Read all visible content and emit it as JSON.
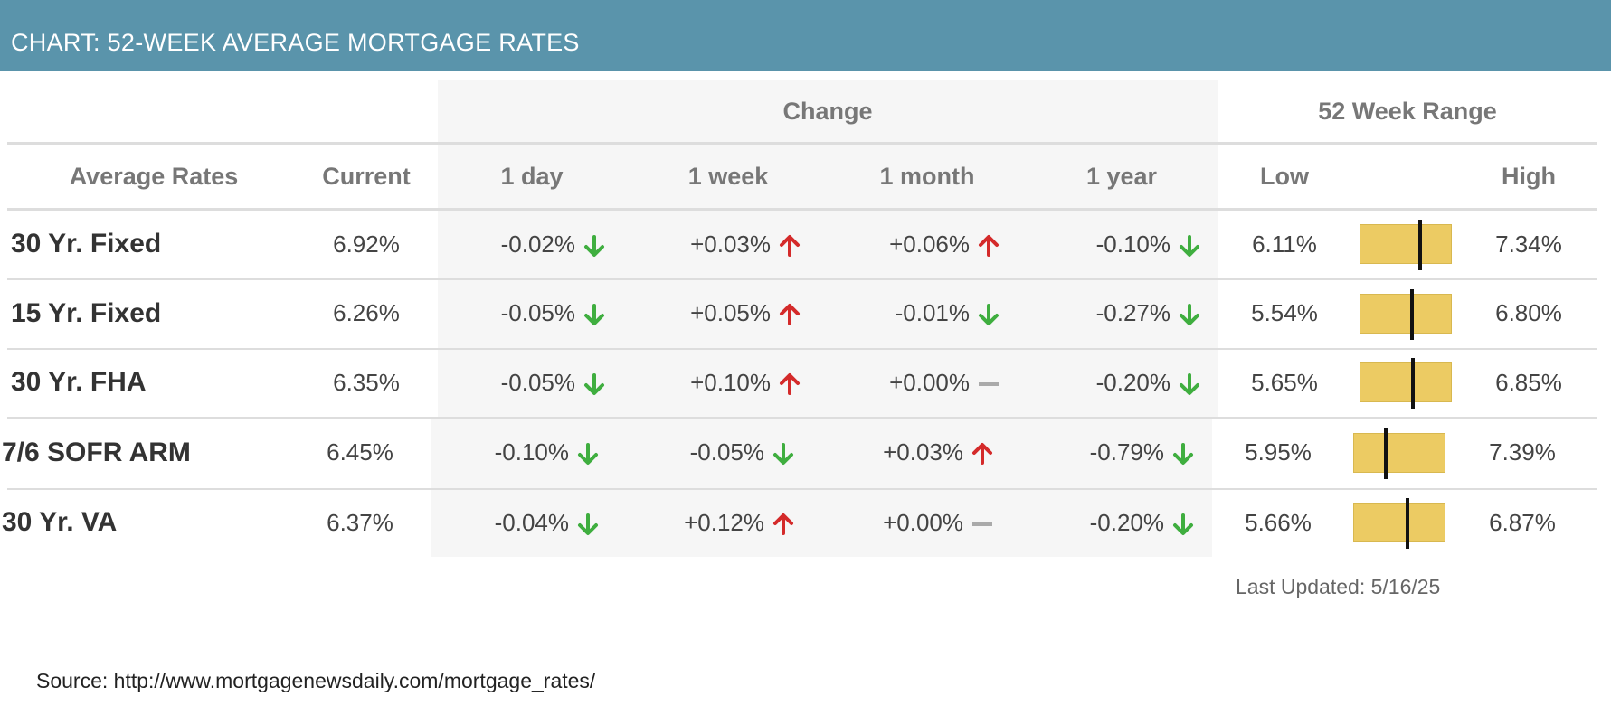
{
  "header": {
    "title": "CHART: 52-WEEK AVERAGE MORTGAGE RATES"
  },
  "chart_data": {
    "type": "table",
    "group_headers": {
      "change": "Change",
      "range": "52 Week Range"
    },
    "columns": {
      "average_rates": "Average Rates",
      "current": "Current",
      "d1": "1 day",
      "w1": "1 week",
      "m1": "1 month",
      "y1": "1 year",
      "low": "Low",
      "high": "High"
    },
    "rows": [
      {
        "name": "30 Yr. Fixed",
        "current": "6.92%",
        "changes": [
          {
            "text": "-0.02%",
            "dir": "down"
          },
          {
            "text": "+0.03%",
            "dir": "up"
          },
          {
            "text": "+0.06%",
            "dir": "up"
          },
          {
            "text": "-0.10%",
            "dir": "down"
          }
        ],
        "low": "6.11%",
        "high": "7.34%",
        "low_value": 6.11,
        "high_value": 7.34,
        "current_value": 6.92
      },
      {
        "name": "15 Yr. Fixed",
        "current": "6.26%",
        "changes": [
          {
            "text": "-0.05%",
            "dir": "down"
          },
          {
            "text": "+0.05%",
            "dir": "up"
          },
          {
            "text": "-0.01%",
            "dir": "down"
          },
          {
            "text": "-0.27%",
            "dir": "down"
          }
        ],
        "low": "5.54%",
        "high": "6.80%",
        "low_value": 5.54,
        "high_value": 6.8,
        "current_value": 6.26
      },
      {
        "name": "30 Yr. FHA",
        "current": "6.35%",
        "changes": [
          {
            "text": "-0.05%",
            "dir": "down"
          },
          {
            "text": "+0.10%",
            "dir": "up"
          },
          {
            "text": "+0.00%",
            "dir": "flat"
          },
          {
            "text": "-0.20%",
            "dir": "down"
          }
        ],
        "low": "5.65%",
        "high": "6.85%",
        "low_value": 5.65,
        "high_value": 6.85,
        "current_value": 6.35
      },
      {
        "name": "7/6 SOFR ARM",
        "current": "6.45%",
        "changes": [
          {
            "text": "-0.10%",
            "dir": "down"
          },
          {
            "text": "-0.05%",
            "dir": "down"
          },
          {
            "text": "+0.03%",
            "dir": "up"
          },
          {
            "text": "-0.79%",
            "dir": "down"
          }
        ],
        "low": "5.95%",
        "high": "7.39%",
        "low_value": 5.95,
        "high_value": 7.39,
        "current_value": 6.45
      },
      {
        "name": "30 Yr. VA",
        "current": "6.37%",
        "changes": [
          {
            "text": "-0.04%",
            "dir": "down"
          },
          {
            "text": "+0.12%",
            "dir": "up"
          },
          {
            "text": "+0.00%",
            "dir": "flat"
          },
          {
            "text": "-0.20%",
            "dir": "down"
          }
        ],
        "low": "5.66%",
        "high": "6.87%",
        "low_value": 5.66,
        "high_value": 6.87,
        "current_value": 6.37
      }
    ],
    "last_updated": "Last Updated: 5/16/25",
    "source": "Source: http://www.mortgagenewsdaily.com/mortgage_rates/"
  },
  "colors": {
    "banner": "#5a94ab",
    "up": "#d42a2a",
    "down": "#3fae3f",
    "flat": "#aaaaaa",
    "range_fill": "#eccb63",
    "shade": "#f6f6f6"
  }
}
